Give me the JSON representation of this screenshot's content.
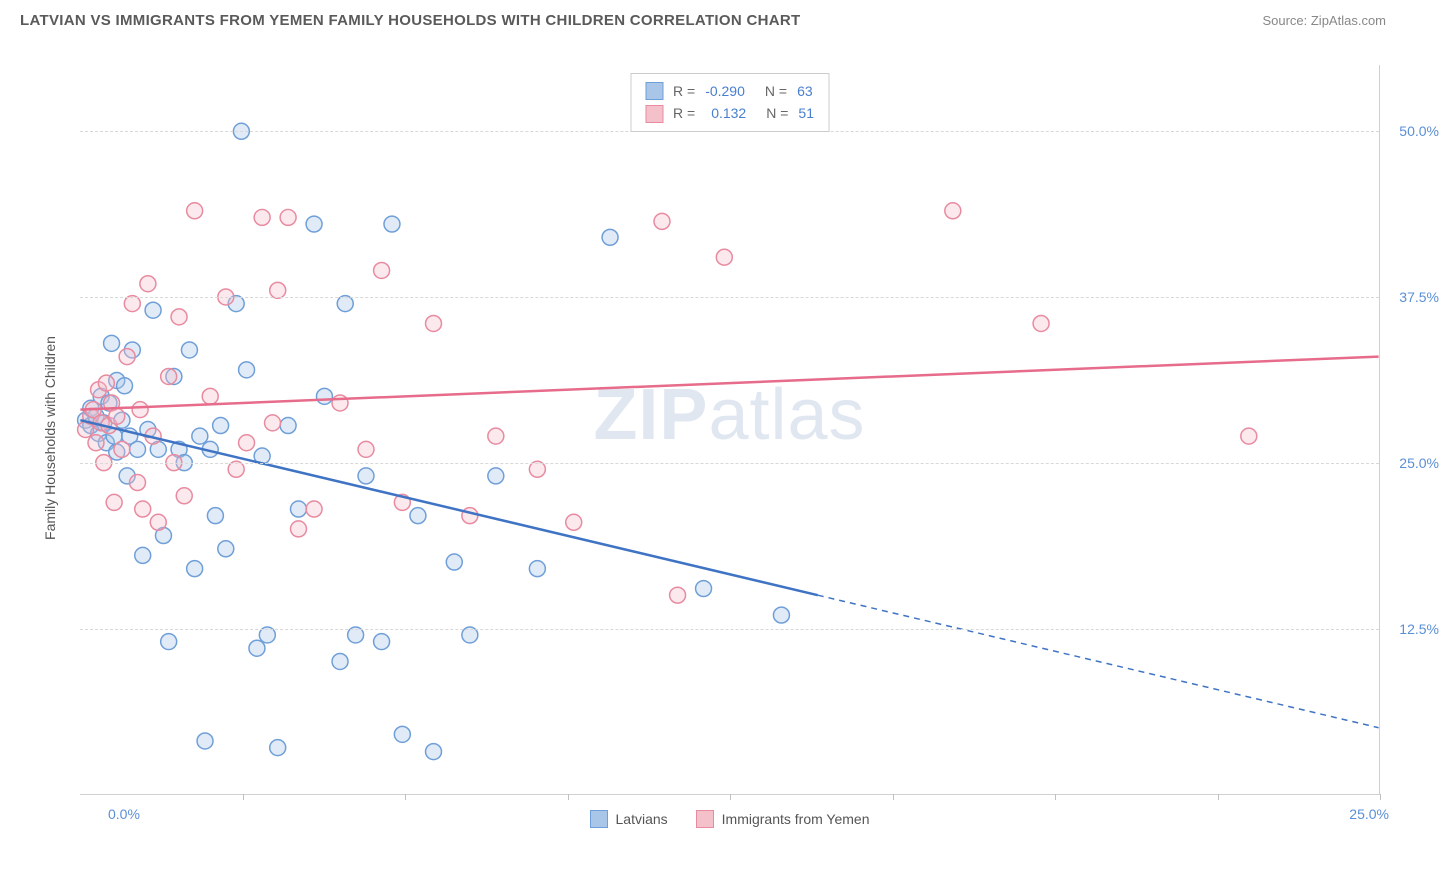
{
  "title": "LATVIAN VS IMMIGRANTS FROM YEMEN FAMILY HOUSEHOLDS WITH CHILDREN CORRELATION CHART",
  "source_label": "Source: ZipAtlas.com",
  "y_axis_label": "Family Households with Children",
  "watermark": {
    "bold": "ZIP",
    "light": "atlas"
  },
  "chart": {
    "type": "scatter",
    "x_range": [
      0,
      25
    ],
    "y_range": [
      0,
      55
    ],
    "y_ticks": [
      12.5,
      25.0,
      37.5,
      50.0
    ],
    "y_tick_labels": [
      "12.5%",
      "25.0%",
      "37.5%",
      "50.0%"
    ],
    "x_ticks": [
      0,
      3.125,
      6.25,
      9.375,
      12.5,
      15.625,
      18.75,
      21.875,
      25
    ],
    "x_origin_label": "0.0%",
    "x_end_label": "25.0%",
    "background_color": "#ffffff",
    "grid_color": "#d8d8d8",
    "marker_radius": 8,
    "marker_stroke_width": 1.5,
    "marker_fill_opacity": 0.35,
    "series": [
      {
        "name": "Latvians",
        "color_fill": "#a9c5e8",
        "color_stroke": "#6f9fd8",
        "R": "-0.290",
        "N": "63",
        "points": [
          [
            0.1,
            28.2
          ],
          [
            0.2,
            27.8
          ],
          [
            0.2,
            29.1
          ],
          [
            0.3,
            28.5
          ],
          [
            0.35,
            27.2
          ],
          [
            0.4,
            30.0
          ],
          [
            0.45,
            28.0
          ],
          [
            0.5,
            26.5
          ],
          [
            0.55,
            29.5
          ],
          [
            0.6,
            34.0
          ],
          [
            0.65,
            27.0
          ],
          [
            0.7,
            25.8
          ],
          [
            0.7,
            31.2
          ],
          [
            0.8,
            28.2
          ],
          [
            0.85,
            30.8
          ],
          [
            0.9,
            24.0
          ],
          [
            0.95,
            27.0
          ],
          [
            1.0,
            33.5
          ],
          [
            1.1,
            26.0
          ],
          [
            1.2,
            18.0
          ],
          [
            1.3,
            27.5
          ],
          [
            1.4,
            36.5
          ],
          [
            1.5,
            26.0
          ],
          [
            1.6,
            19.5
          ],
          [
            1.7,
            11.5
          ],
          [
            1.8,
            31.5
          ],
          [
            1.9,
            26.0
          ],
          [
            2.0,
            25.0
          ],
          [
            2.1,
            33.5
          ],
          [
            2.2,
            17.0
          ],
          [
            2.3,
            27.0
          ],
          [
            2.4,
            4.0
          ],
          [
            2.5,
            26.0
          ],
          [
            2.6,
            21.0
          ],
          [
            2.7,
            27.8
          ],
          [
            2.8,
            18.5
          ],
          [
            3.0,
            37.0
          ],
          [
            3.1,
            50.0
          ],
          [
            3.2,
            32.0
          ],
          [
            3.4,
            11.0
          ],
          [
            3.5,
            25.5
          ],
          [
            3.6,
            12.0
          ],
          [
            3.8,
            3.5
          ],
          [
            4.0,
            27.8
          ],
          [
            4.2,
            21.5
          ],
          [
            4.5,
            43.0
          ],
          [
            4.7,
            30.0
          ],
          [
            5.0,
            10.0
          ],
          [
            5.1,
            37.0
          ],
          [
            5.3,
            12.0
          ],
          [
            5.5,
            24.0
          ],
          [
            5.8,
            11.5
          ],
          [
            6.0,
            43.0
          ],
          [
            6.2,
            4.5
          ],
          [
            6.5,
            21.0
          ],
          [
            6.8,
            3.2
          ],
          [
            7.2,
            17.5
          ],
          [
            7.5,
            12.0
          ],
          [
            8.0,
            24.0
          ],
          [
            8.8,
            17.0
          ],
          [
            10.2,
            42.0
          ],
          [
            12.0,
            15.5
          ],
          [
            13.5,
            13.5
          ]
        ],
        "trend": {
          "start": [
            0,
            28.2
          ],
          "solid_end": [
            14.2,
            15.0
          ],
          "dash_end": [
            25,
            5.0
          ],
          "color": "#3f73c4",
          "width": 2.5
        }
      },
      {
        "name": "Immigrants from Yemen",
        "color_fill": "#f4c0ca",
        "color_stroke": "#e88aa0",
        "R": "0.132",
        "N": "51",
        "points": [
          [
            0.1,
            27.5
          ],
          [
            0.2,
            28.5
          ],
          [
            0.25,
            29.0
          ],
          [
            0.3,
            26.5
          ],
          [
            0.35,
            30.5
          ],
          [
            0.4,
            28.0
          ],
          [
            0.45,
            25.0
          ],
          [
            0.5,
            31.0
          ],
          [
            0.55,
            27.8
          ],
          [
            0.6,
            29.5
          ],
          [
            0.65,
            22.0
          ],
          [
            0.7,
            28.5
          ],
          [
            0.8,
            26.0
          ],
          [
            0.9,
            33.0
          ],
          [
            1.0,
            37.0
          ],
          [
            1.1,
            23.5
          ],
          [
            1.15,
            29.0
          ],
          [
            1.2,
            21.5
          ],
          [
            1.3,
            38.5
          ],
          [
            1.4,
            27.0
          ],
          [
            1.5,
            20.5
          ],
          [
            1.7,
            31.5
          ],
          [
            1.8,
            25.0
          ],
          [
            1.9,
            36.0
          ],
          [
            2.0,
            22.5
          ],
          [
            2.2,
            44.0
          ],
          [
            2.5,
            30.0
          ],
          [
            2.8,
            37.5
          ],
          [
            3.0,
            24.5
          ],
          [
            3.2,
            26.5
          ],
          [
            3.5,
            43.5
          ],
          [
            3.7,
            28.0
          ],
          [
            3.8,
            38.0
          ],
          [
            4.0,
            43.5
          ],
          [
            4.2,
            20.0
          ],
          [
            4.5,
            21.5
          ],
          [
            5.0,
            29.5
          ],
          [
            5.5,
            26.0
          ],
          [
            5.8,
            39.5
          ],
          [
            6.2,
            22.0
          ],
          [
            6.8,
            35.5
          ],
          [
            7.5,
            21.0
          ],
          [
            8.0,
            27.0
          ],
          [
            8.8,
            24.5
          ],
          [
            9.5,
            20.5
          ],
          [
            11.2,
            43.2
          ],
          [
            11.5,
            15.0
          ],
          [
            12.4,
            40.5
          ],
          [
            16.8,
            44.0
          ],
          [
            18.5,
            35.5
          ],
          [
            22.5,
            27.0
          ]
        ],
        "trend": {
          "start": [
            0,
            29.0
          ],
          "solid_end": [
            25,
            33.0
          ],
          "color": "#e76b8a",
          "width": 2.5
        }
      }
    ]
  },
  "legend_bottom": [
    {
      "label": "Latvians",
      "fill": "#a9c5e8",
      "stroke": "#6f9fd8"
    },
    {
      "label": "Immigrants from Yemen",
      "fill": "#f4c0ca",
      "stroke": "#e88aa0"
    }
  ]
}
